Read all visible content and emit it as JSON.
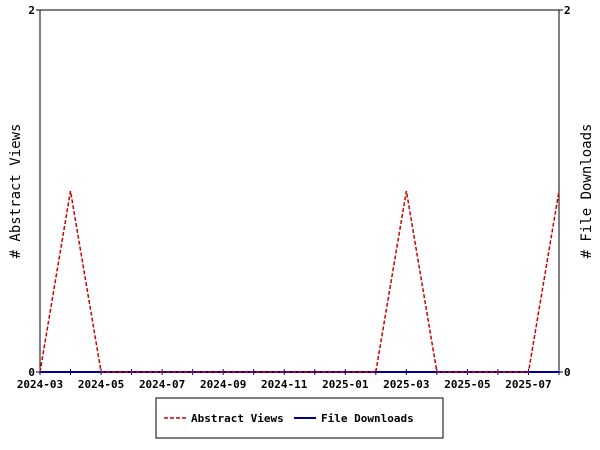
{
  "chart_data": {
    "type": "line",
    "title": "",
    "xlabel": "",
    "ylabel": "# Abstract Views",
    "y2label": "# File Downloads",
    "ylim": [
      0,
      2
    ],
    "y2lim": [
      0,
      2
    ],
    "y_ticks": [
      "0",
      "2"
    ],
    "y2_ticks": [
      "0",
      "2"
    ],
    "x_range": [
      "2024-03",
      "2025-08"
    ],
    "x_tick_labels": [
      "2024-03",
      "2024-05",
      "2024-07",
      "2024-09",
      "2024-11",
      "2025-01",
      "2025-03",
      "2025-05",
      "2025-07"
    ],
    "x_ticks_monthly": [
      "2024-03",
      "2024-04",
      "2024-05",
      "2024-06",
      "2024-07",
      "2024-08",
      "2024-09",
      "2024-10",
      "2024-11",
      "2024-12",
      "2025-01",
      "2025-02",
      "2025-03",
      "2025-04",
      "2025-05",
      "2025-06",
      "2025-07",
      "2025-08"
    ],
    "legend_position": "bottom",
    "grid": false,
    "series": [
      {
        "name": "Abstract Views",
        "axis": "left",
        "color": "#cc0000",
        "style": "dashed",
        "x": [
          "2024-03",
          "2024-04",
          "2024-05",
          "2024-06",
          "2024-07",
          "2024-08",
          "2024-09",
          "2024-10",
          "2024-11",
          "2024-12",
          "2025-01",
          "2025-02",
          "2025-03",
          "2025-04",
          "2025-05",
          "2025-06",
          "2025-07",
          "2025-08"
        ],
        "values": [
          0,
          1,
          0,
          0,
          0,
          0,
          0,
          0,
          0,
          0,
          0,
          0,
          1,
          0,
          0,
          0,
          0,
          1
        ]
      },
      {
        "name": "File Downloads",
        "axis": "right",
        "color": "#000099",
        "style": "solid",
        "x": [
          "2024-03",
          "2024-04",
          "2024-05",
          "2024-06",
          "2024-07",
          "2024-08",
          "2024-09",
          "2024-10",
          "2024-11",
          "2024-12",
          "2025-01",
          "2025-02",
          "2025-03",
          "2025-04",
          "2025-05",
          "2025-06",
          "2025-07",
          "2025-08"
        ],
        "values": [
          0,
          0,
          0,
          0,
          0,
          0,
          0,
          0,
          0,
          0,
          0,
          0,
          0,
          0,
          0,
          0,
          0,
          0
        ]
      }
    ]
  }
}
